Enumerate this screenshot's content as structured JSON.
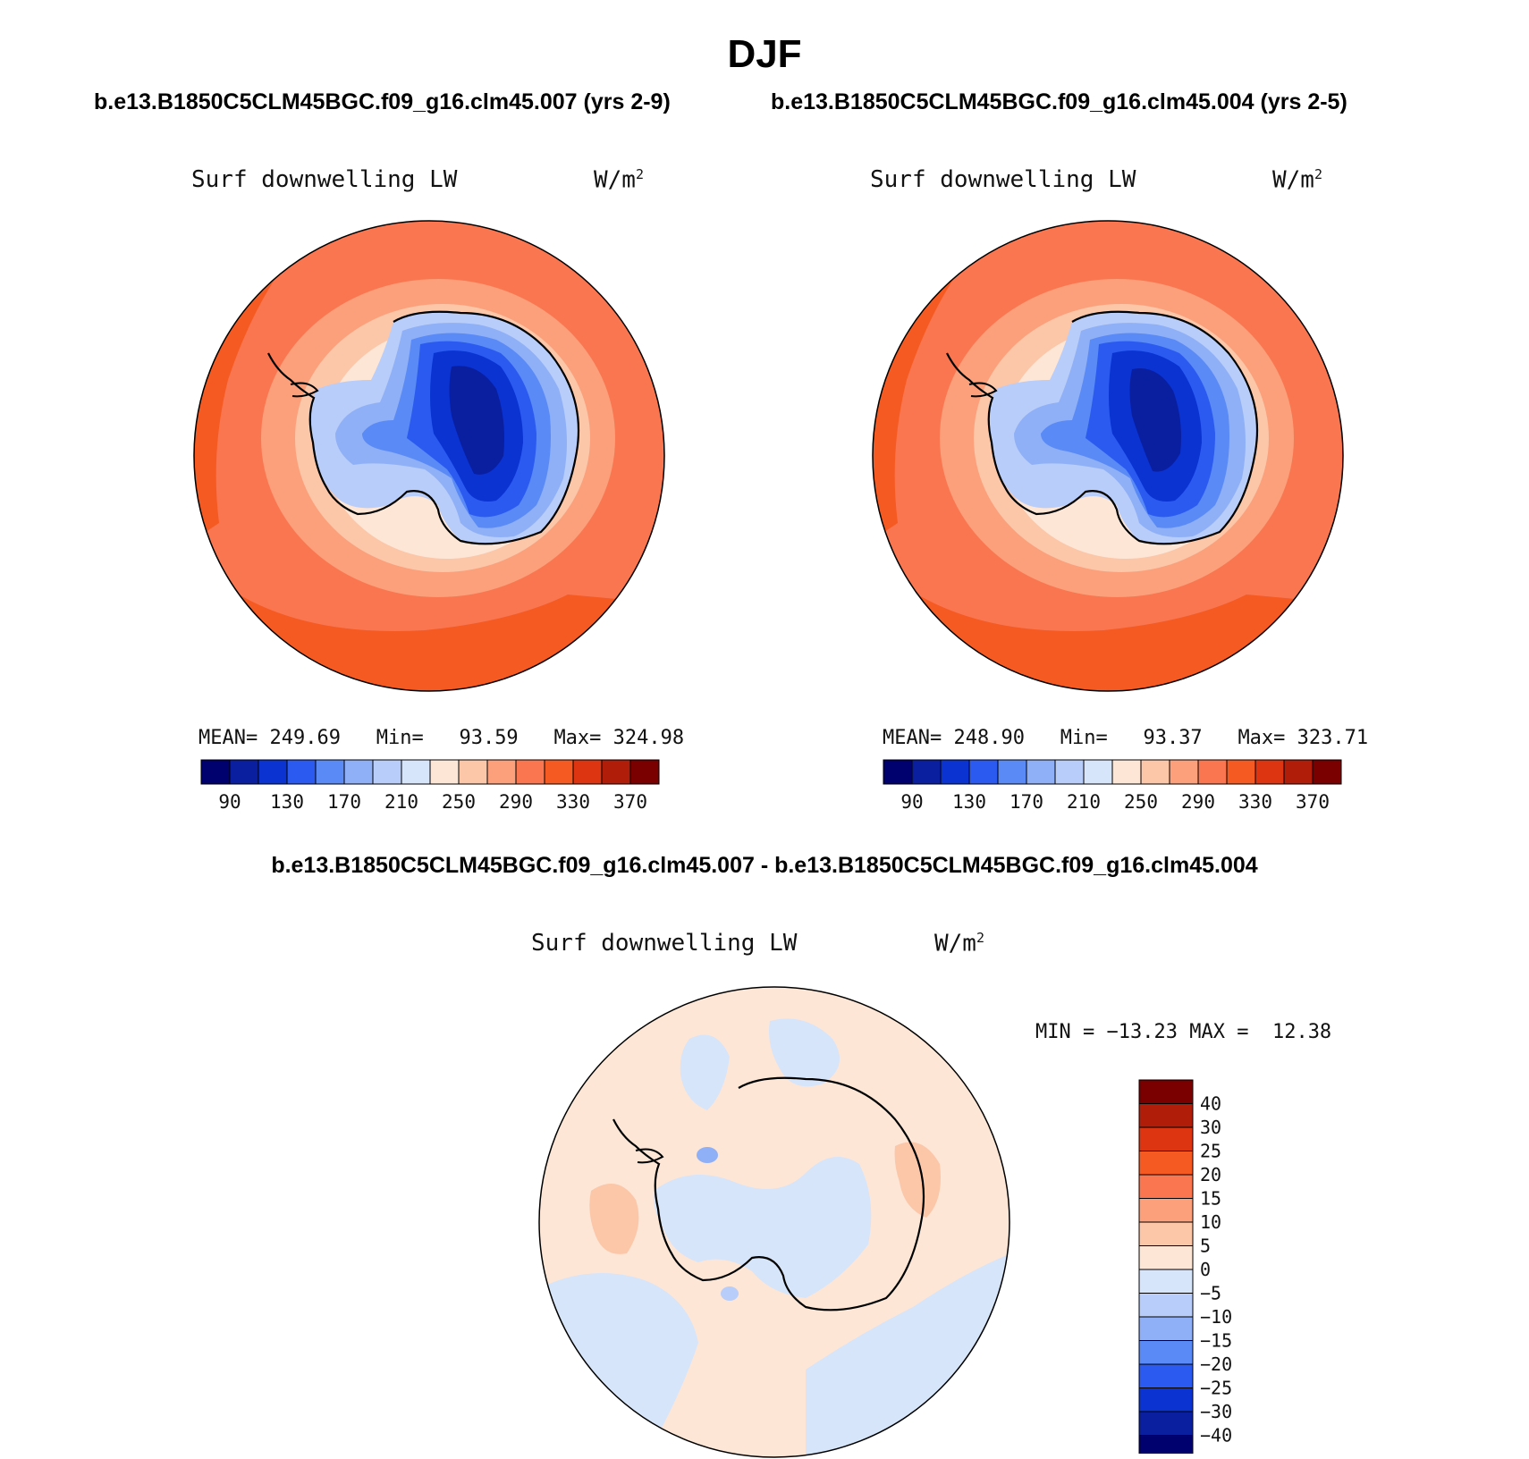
{
  "season_title": "DJF",
  "case1_title": "b.e13.B1850C5CLM45BGC.f09_g16.clm45.007 (yrs 2-9)",
  "case2_title": "b.e13.B1850C5CLM45BGC.f09_g16.clm45.004 (yrs 2-5)",
  "diff_title": "b.e13.B1850C5CLM45BGC.f09_g16.clm45.007 - b.e13.B1850C5CLM45BGC.f09_g16.clm45.004",
  "variable_label": "Surf downwelling LW",
  "units_label": "W/m",
  "units_exponent": "2",
  "panel1": {
    "mean_label": "MEAN=",
    "mean": "249.69",
    "min_label": "Min=",
    "min": "93.59",
    "max_label": "Max=",
    "max": "324.98"
  },
  "panel2": {
    "mean_label": "MEAN=",
    "mean": "248.90",
    "min_label": "Min=",
    "min": "93.37",
    "max_label": "Max=",
    "max": "323.71"
  },
  "diff_stats": {
    "min_label": "MIN =",
    "min": "−13.23",
    "max_label": "MAX =",
    "max": "12.38"
  },
  "abs_colorbar": {
    "colors": [
      "#00006e",
      "#0a1fa0",
      "#0a33d2",
      "#2a5af0",
      "#5a8af5",
      "#8fb0f7",
      "#b8cdf9",
      "#d6e5fa",
      "#fde6d6",
      "#fcc6a8",
      "#fba07a",
      "#fa7650",
      "#f55a22",
      "#dd3511",
      "#b01e0a",
      "#7a0000"
    ],
    "tick_labels": [
      "90",
      "130",
      "170",
      "210",
      "250",
      "290",
      "330",
      "370"
    ]
  },
  "diff_colorbar": {
    "colors_top_to_bottom": [
      "#7a0000",
      "#b01e0a",
      "#dd3511",
      "#f55a22",
      "#fa7650",
      "#fba07a",
      "#fcc6a8",
      "#fde6d6",
      "#d6e5fa",
      "#b8cdf9",
      "#8fb0f7",
      "#5a8af5",
      "#2a5af0",
      "#0a33d2",
      "#0a1fa0",
      "#00006e"
    ],
    "tick_labels": [
      "40",
      "30",
      "25",
      "20",
      "15",
      "10",
      "5",
      "0",
      "−5",
      "−10",
      "−15",
      "−20",
      "−25",
      "−30",
      "−40"
    ]
  }
}
